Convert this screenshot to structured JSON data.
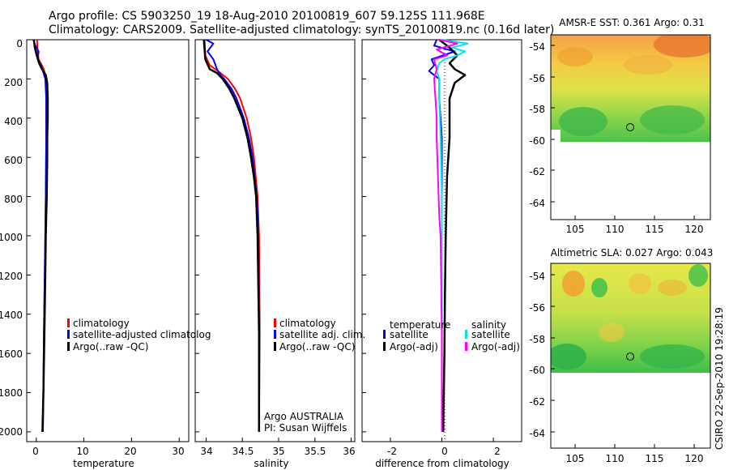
{
  "header": {
    "line1": "Argo profile: CS 5903250_19 18-Aug-2010 20100819_607 59.125S 111.968E",
    "line2": "Climatology: CARS2009. Satellite-adjusted climatology: synTS_20100819.nc (0.16d later)"
  },
  "colors": {
    "red": "#ff0000",
    "blue": "#0000ff",
    "black": "#000000",
    "cyan": "#00e5ee",
    "magenta": "#ff00ff"
  },
  "side_label": "CSIRO 22-Sep-2010 19:28:19",
  "chart_data": [
    {
      "name": "temperature",
      "type": "line",
      "xlabel": "temperature",
      "ylabel": "",
      "xlim": [
        -2,
        32
      ],
      "ylim": [
        2050,
        0
      ],
      "xticks": [
        0,
        10,
        20,
        30
      ],
      "xtick_labels": [
        "0",
        "10",
        "20",
        "30"
      ],
      "yticks": [
        0,
        200,
        400,
        600,
        800,
        1000,
        1200,
        1400,
        1600,
        1800,
        2000
      ],
      "ytick_labels": [
        "0",
        "200",
        "400",
        "600",
        "800",
        "1000",
        "1200",
        "1400",
        "1600",
        "1800",
        "2000"
      ],
      "legend": [
        "climatology",
        "satellite-adjusted climatolog",
        "Argo(..raw -QC)"
      ],
      "series": [
        {
          "name": "climatology",
          "color": "red",
          "depth": [
            0,
            20,
            60,
            100,
            150,
            200,
            300,
            500,
            800,
            1000,
            1500,
            2000
          ],
          "values": [
            0.2,
            0.2,
            0.3,
            0.5,
            1.6,
            2.0,
            2.1,
            2.1,
            2.0,
            1.9,
            1.6,
            1.4
          ]
        },
        {
          "name": "satellite-adjusted climatology",
          "color": "blue",
          "depth": [
            0,
            30,
            60,
            100,
            130,
            160,
            200,
            300,
            500,
            800,
            1000,
            1500,
            2000
          ],
          "values": [
            -0.6,
            -0.2,
            0.5,
            0.3,
            1.0,
            1.4,
            1.9,
            2.1,
            2.1,
            2.0,
            1.9,
            1.6,
            1.4
          ]
        },
        {
          "name": "Argo(..raw -QC)",
          "color": "black",
          "depth": [
            0,
            40,
            80,
            120,
            150,
            180,
            220,
            300,
            400,
            500,
            600,
            800,
            1000,
            1200,
            1500,
            1800,
            2000
          ],
          "values": [
            -0.5,
            -0.3,
            0.1,
            0.6,
            1.2,
            2.0,
            2.3,
            2.4,
            2.4,
            2.3,
            2.3,
            2.2,
            2.0,
            1.9,
            1.7,
            1.5,
            1.3
          ]
        }
      ]
    },
    {
      "name": "salinity",
      "type": "line",
      "xlabel": "salinity",
      "ylabel": "",
      "xlim": [
        33.85,
        36.05
      ],
      "ylim": [
        2050,
        0
      ],
      "xticks": [
        34,
        34.5,
        35,
        35.5,
        36
      ],
      "xtick_labels": [
        "34",
        "34.5",
        "35",
        "35.5",
        "36"
      ],
      "legend": [
        "climatology",
        "satellite adj. clim.",
        "Argo(..raw -QC)"
      ],
      "annotation": [
        "Argo AUSTRALIA",
        "PI: Susan Wijffels"
      ],
      "series": [
        {
          "name": "climatology",
          "color": "red",
          "depth": [
            0,
            80,
            130,
            170,
            200,
            250,
            300,
            400,
            500,
            600,
            800,
            1000,
            1500,
            2000
          ],
          "values": [
            33.98,
            33.99,
            34.05,
            34.2,
            34.3,
            34.4,
            34.47,
            34.56,
            34.62,
            34.66,
            34.71,
            34.73,
            34.74,
            34.73
          ]
        },
        {
          "name": "satellite adj. clim.",
          "color": "blue",
          "depth": [
            0,
            20,
            60,
            100,
            150,
            180,
            200,
            250,
            300,
            400,
            500,
            600,
            800,
            1000,
            1500,
            2000
          ],
          "values": [
            34.0,
            34.1,
            34.02,
            34.1,
            34.15,
            34.2,
            34.25,
            34.35,
            34.42,
            34.52,
            34.59,
            34.64,
            34.7,
            34.72,
            34.73,
            34.73
          ]
        },
        {
          "name": "Argo(..raw -QC)",
          "color": "black",
          "depth": [
            0,
            50,
            100,
            150,
            170,
            200,
            250,
            300,
            400,
            500,
            600,
            700,
            800,
            1000,
            1500,
            2000
          ],
          "values": [
            33.97,
            33.98,
            33.99,
            34.05,
            34.15,
            34.23,
            34.32,
            34.39,
            34.5,
            34.57,
            34.62,
            34.66,
            34.69,
            34.71,
            34.73,
            34.73
          ]
        }
      ]
    },
    {
      "name": "difference",
      "type": "line",
      "xlabel": "difference from climatology",
      "ylabel": "",
      "xlim": [
        -3.1,
        3.1
      ],
      "ylim": [
        2050,
        0
      ],
      "xticks": [
        -2,
        0,
        2
      ],
      "xtick_labels": [
        "-2",
        "0",
        "2"
      ],
      "legend_groups": [
        {
          "title": "temperature",
          "items": [
            "satellite",
            "Argo(-adj)"
          ]
        },
        {
          "title": "salinity",
          "items": [
            "satellite",
            "Argo(-adj)"
          ]
        }
      ],
      "series": [
        {
          "name": "temperature satellite",
          "color": "blue",
          "depth": [
            0,
            30,
            60,
            100,
            130,
            160,
            200,
            300,
            500,
            800,
            1000,
            1500,
            2000
          ],
          "values": [
            -0.2,
            -0.3,
            0.5,
            -0.4,
            -0.3,
            -0.5,
            -0.1,
            -0.1,
            0.0,
            0.0,
            0.0,
            0.0,
            0.0
          ]
        },
        {
          "name": "temperature Argo(-adj)",
          "color": "black",
          "depth": [
            0,
            40,
            80,
            120,
            150,
            180,
            220,
            300,
            500,
            700,
            1000,
            1300,
            1600,
            2000
          ],
          "values": [
            -0.1,
            0.3,
            0.6,
            0.3,
            0.5,
            0.9,
            0.5,
            0.3,
            0.3,
            0.2,
            0.15,
            0.12,
            0.1,
            0.05
          ]
        },
        {
          "name": "salinity satellite",
          "color": "cyan",
          "depth": [
            0,
            20,
            40,
            60,
            80,
            100,
            120,
            160,
            200,
            300,
            500,
            800,
            1000,
            1500,
            2000
          ],
          "values": [
            0.0,
            1.0,
            0.4,
            0.9,
            0.6,
            0.1,
            -0.1,
            -0.2,
            -0.1,
            -0.1,
            -0.05,
            0.0,
            0.0,
            0.0,
            0.0
          ]
        },
        {
          "name": "salinity Argo(-adj)",
          "color": "magenta",
          "depth": [
            0,
            20,
            50,
            80,
            100,
            150,
            200,
            300,
            400,
            500,
            700,
            900,
            1000,
            1500,
            2000
          ],
          "values": [
            -0.1,
            0.6,
            -0.2,
            0.2,
            -0.3,
            -0.2,
            -0.3,
            -0.25,
            -0.2,
            -0.2,
            -0.15,
            -0.1,
            -0.05,
            0.0,
            0.0
          ]
        }
      ]
    },
    {
      "name": "sst_map",
      "type": "heatmap",
      "title": "AMSR-E SST: 0.361 Argo: 0.31",
      "xlim": [
        102,
        122
      ],
      "ylim": [
        -65.5,
        -53
      ],
      "xticks": [
        105,
        110,
        115,
        120
      ],
      "yticks": [
        -54,
        -56,
        -58,
        -60,
        -62,
        -64
      ],
      "data_extent_lat": [
        -60.1,
        -53
      ],
      "marker": {
        "lon": 112,
        "lat": -59.1
      }
    },
    {
      "name": "sla_map",
      "type": "heatmap",
      "title": "Altimetric SLA: 0.027 Argo: 0.043",
      "xlim": [
        102,
        122
      ],
      "ylim": [
        -65.5,
        -53
      ],
      "xticks": [
        105,
        110,
        115,
        120
      ],
      "yticks": [
        -54,
        -56,
        -58,
        -60,
        -62,
        -64
      ],
      "data_extent_lat": [
        -60.1,
        -53
      ],
      "marker": {
        "lon": 112,
        "lat": -59.1
      }
    }
  ]
}
